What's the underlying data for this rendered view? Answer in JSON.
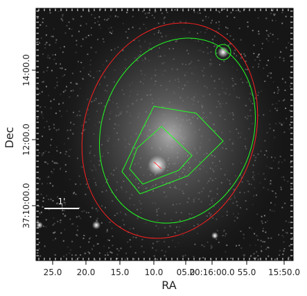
{
  "x_axis": {
    "label": "RA",
    "ticks": [
      "25.0",
      "20.0",
      "15.0",
      "10.0",
      "05.0",
      "20:16:00.0",
      "55.0",
      "15:50.0"
    ]
  },
  "y_axis": {
    "label": "Dec",
    "ticks": [
      "14:00.0",
      "12:00.0",
      "37:10:00.0"
    ]
  },
  "scale_bar": {
    "label": "1'"
  }
}
